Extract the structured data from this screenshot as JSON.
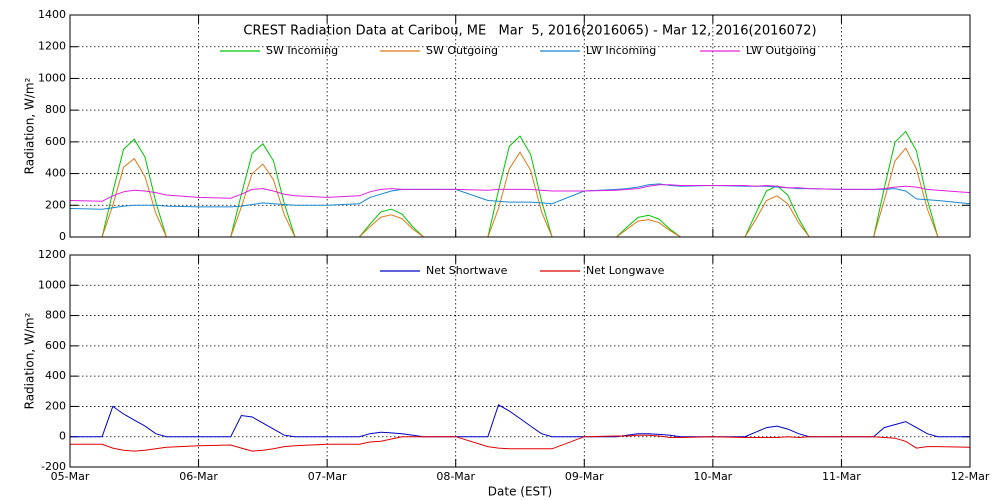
{
  "chart_data": [
    {
      "type": "line",
      "title": "CREST Radiation Data at Caribou, ME   Mar  5, 2016(2016065) - Mar 12, 2016(2016072)",
      "ylabel": "Radiation, W/m²",
      "ylim": [
        0,
        1400
      ],
      "yticks": [
        0,
        200,
        400,
        600,
        800,
        1000,
        1200,
        1400
      ],
      "xlim": [
        0,
        7
      ],
      "xticks": [
        0,
        1,
        2,
        3,
        4,
        5,
        6,
        7
      ],
      "grid": true,
      "x": [
        0,
        0.25,
        0.333,
        0.417,
        0.5,
        0.583,
        0.667,
        0.75,
        1,
        1.25,
        1.333,
        1.417,
        1.5,
        1.583,
        1.667,
        1.75,
        2,
        2.25,
        2.333,
        2.417,
        2.5,
        2.583,
        2.667,
        2.75,
        3,
        3.25,
        3.333,
        3.417,
        3.5,
        3.583,
        3.667,
        3.75,
        4,
        4.25,
        4.333,
        4.417,
        4.5,
        4.583,
        4.667,
        4.75,
        5,
        5.25,
        5.333,
        5.417,
        5.5,
        5.583,
        5.667,
        5.75,
        6,
        6.25,
        6.333,
        6.417,
        6.5,
        6.583,
        6.667,
        6.75,
        7
      ],
      "series": [
        {
          "name": "SW Incoming",
          "color": "#00c800",
          "values": [
            0,
            0,
            284,
            554,
            617,
            504,
            221,
            0,
            0,
            0,
            270,
            528,
            588,
            480,
            210,
            0,
            0,
            0,
            81,
            158,
            176,
            144,
            63,
            0,
            0,
            0,
            293,
            572,
            637,
            520,
            228,
            0,
            0,
            0,
            63,
            123,
            137,
            112,
            49,
            0,
            0,
            0,
            149,
            290,
            323,
            264,
            116,
            0,
            0,
            0,
            306,
            598,
            666,
            544,
            238,
            0,
            0
          ]
        },
        {
          "name": "SW Outgoing",
          "color": "#e07818",
          "values": [
            0,
            0,
            200,
            440,
            495,
            380,
            150,
            0,
            0,
            0,
            190,
            400,
            460,
            360,
            140,
            0,
            0,
            0,
            65,
            125,
            140,
            115,
            50,
            0,
            0,
            0,
            180,
            430,
            535,
            420,
            160,
            0,
            0,
            0,
            50,
            100,
            110,
            90,
            40,
            0,
            0,
            0,
            110,
            230,
            260,
            210,
            90,
            0,
            0,
            0,
            230,
            480,
            560,
            430,
            180,
            0,
            0
          ]
        },
        {
          "name": "LW Incoming",
          "color": "#1888d0",
          "values": [
            180,
            175,
            185,
            195,
            200,
            200,
            200,
            195,
            190,
            190,
            195,
            205,
            215,
            210,
            205,
            200,
            200,
            210,
            250,
            270,
            290,
            300,
            300,
            300,
            300,
            230,
            225,
            220,
            220,
            220,
            215,
            210,
            290,
            300,
            305,
            315,
            330,
            335,
            325,
            320,
            325,
            320,
            320,
            320,
            315,
            310,
            305,
            305,
            300,
            300,
            300,
            305,
            290,
            240,
            235,
            230,
            210
          ]
        },
        {
          "name": "LW Outgoing",
          "color": "#e020e0",
          "values": [
            230,
            225,
            260,
            285,
            295,
            290,
            280,
            265,
            250,
            245,
            270,
            300,
            305,
            290,
            270,
            260,
            250,
            260,
            285,
            300,
            305,
            300,
            300,
            300,
            300,
            295,
            300,
            300,
            300,
            300,
            295,
            290,
            290,
            295,
            300,
            305,
            320,
            330,
            330,
            325,
            325,
            325,
            320,
            325,
            320,
            310,
            310,
            305,
            300,
            300,
            305,
            315,
            320,
            315,
            300,
            295,
            280
          ]
        }
      ]
    },
    {
      "type": "line",
      "ylabel": "Radiation, W/m²",
      "xlabel": "Date (EST)",
      "ylim": [
        -200,
        1200
      ],
      "yticks": [
        -200,
        0,
        200,
        400,
        600,
        800,
        1000,
        1200
      ],
      "xlim": [
        0,
        7
      ],
      "xticks": [
        {
          "value": 0,
          "label": "05-Mar"
        },
        {
          "value": 1,
          "label": "06-Mar"
        },
        {
          "value": 2,
          "label": "07-Mar"
        },
        {
          "value": 3,
          "label": "08-Mar"
        },
        {
          "value": 4,
          "label": "09-Mar"
        },
        {
          "value": 5,
          "label": "10-Mar"
        },
        {
          "value": 6,
          "label": "11-Mar"
        },
        {
          "value": 7,
          "label": "12-Mar"
        }
      ],
      "grid": true,
      "x": [
        0,
        0.25,
        0.333,
        0.417,
        0.5,
        0.583,
        0.667,
        0.75,
        1,
        1.25,
        1.333,
        1.417,
        1.5,
        1.583,
        1.667,
        1.75,
        2,
        2.25,
        2.333,
        2.417,
        2.5,
        2.583,
        2.667,
        2.75,
        3,
        3.25,
        3.333,
        3.417,
        3.5,
        3.583,
        3.667,
        3.75,
        4,
        4.25,
        4.333,
        4.417,
        4.5,
        4.583,
        4.667,
        4.75,
        5,
        5.25,
        5.333,
        5.417,
        5.5,
        5.583,
        5.667,
        5.75,
        6,
        6.25,
        6.333,
        6.417,
        6.5,
        6.583,
        6.667,
        6.75,
        7
      ],
      "series": [
        {
          "name": "Net Shortwave",
          "color": "#0000c8",
          "values": [
            0,
            0,
            200,
            150,
            110,
            70,
            20,
            0,
            0,
            0,
            140,
            130,
            90,
            50,
            10,
            0,
            0,
            0,
            20,
            30,
            25,
            20,
            10,
            0,
            0,
            0,
            210,
            170,
            120,
            70,
            20,
            0,
            0,
            0,
            10,
            20,
            20,
            15,
            10,
            0,
            0,
            0,
            30,
            60,
            70,
            50,
            20,
            0,
            0,
            0,
            60,
            80,
            100,
            60,
            20,
            0,
            0
          ]
        },
        {
          "name": "Net Longwave",
          "color": "#e00000",
          "values": [
            -50,
            -50,
            -75,
            -90,
            -95,
            -90,
            -80,
            -70,
            -60,
            -55,
            -75,
            -95,
            -90,
            -80,
            -65,
            -60,
            -50,
            -50,
            -35,
            -30,
            -15,
            0,
            0,
            0,
            0,
            -65,
            -75,
            -80,
            -80,
            -80,
            -80,
            -80,
            0,
            5,
            5,
            10,
            10,
            5,
            -5,
            -5,
            0,
            -5,
            -5,
            -5,
            -5,
            0,
            -5,
            0,
            0,
            0,
            -5,
            -10,
            -30,
            -75,
            -65,
            -65,
            -70
          ]
        }
      ]
    }
  ]
}
